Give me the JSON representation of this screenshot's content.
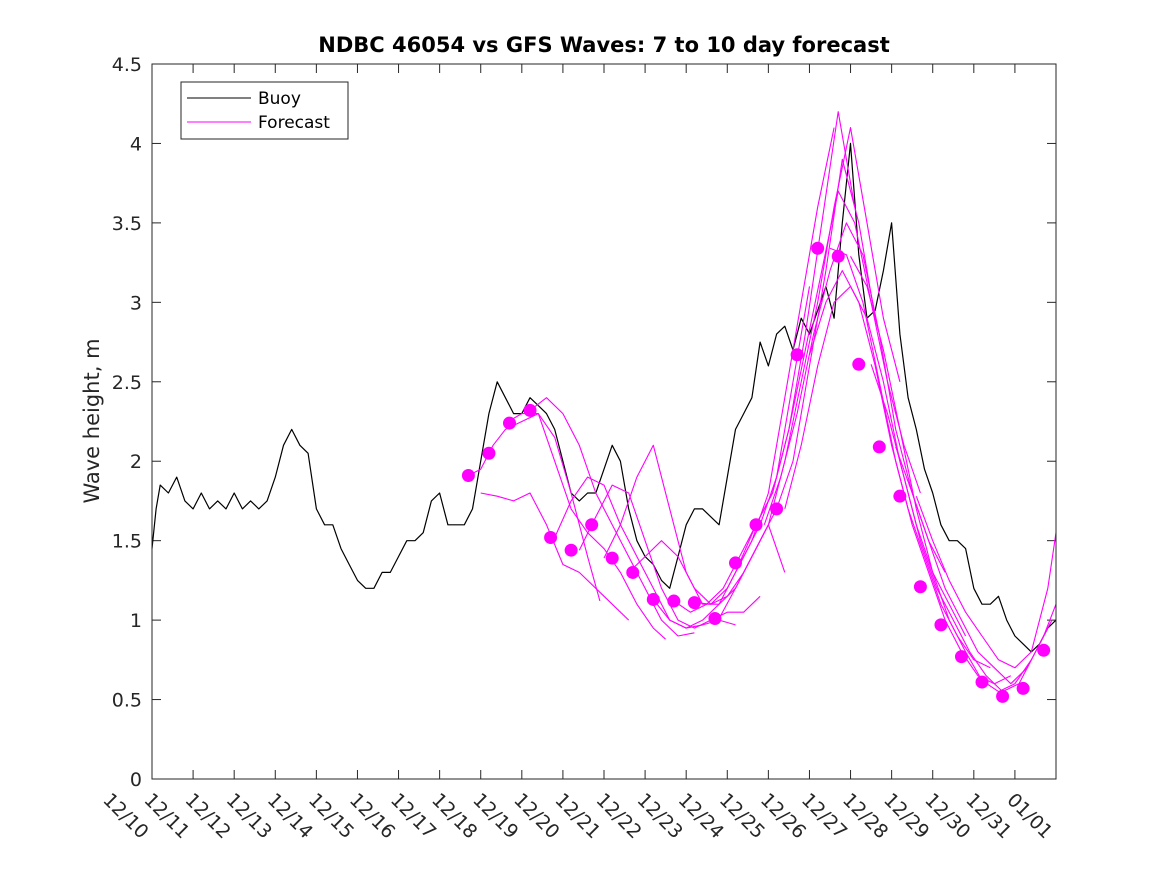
{
  "chart_data": {
    "type": "line",
    "title": "NDBC 46054 vs GFS Waves: 7 to 10 day forecast",
    "xlabel": "",
    "ylabel": "Wave height, m",
    "xlim": [
      0,
      22
    ],
    "ylim": [
      0,
      4.5
    ],
    "yticks": [
      0,
      0.5,
      1,
      1.5,
      2,
      2.5,
      3,
      3.5,
      4,
      4.5
    ],
    "ytick_labels": [
      "0",
      "0.5",
      "1",
      "1.5",
      "2",
      "2.5",
      "3",
      "3.5",
      "4",
      "4.5"
    ],
    "xtick_labels": [
      "12/10",
      "12/11",
      "12/12",
      "12/13",
      "12/14",
      "12/15",
      "12/16",
      "12/17",
      "12/18",
      "12/19",
      "12/20",
      "12/21",
      "12/22",
      "12/23",
      "12/24",
      "12/25",
      "12/26",
      "12/27",
      "12/28",
      "12/29",
      "12/30",
      "12/31",
      "01/01"
    ],
    "legend": {
      "position": "top-left",
      "entries": [
        "Buoy",
        "Forecast"
      ]
    },
    "colors": {
      "buoy": "#000000",
      "forecast": "#ff00ff",
      "axis": "#262626"
    },
    "buoy": {
      "name": "Buoy",
      "x": [
        0,
        0.1,
        0.2,
        0.4,
        0.6,
        0.8,
        1.0,
        1.2,
        1.4,
        1.6,
        1.8,
        2.0,
        2.2,
        2.4,
        2.6,
        2.8,
        3.0,
        3.2,
        3.4,
        3.6,
        3.8,
        4.0,
        4.2,
        4.4,
        4.6,
        4.8,
        5.0,
        5.2,
        5.4,
        5.6,
        5.8,
        6.0,
        6.2,
        6.4,
        6.6,
        6.8,
        7.0,
        7.2,
        7.4,
        7.6,
        7.8,
        8.0,
        8.2,
        8.4,
        8.6,
        8.8,
        9.0,
        9.2,
        9.4,
        9.6,
        9.8,
        10.0,
        10.2,
        10.4,
        10.6,
        10.8,
        11.0,
        11.2,
        11.4,
        11.6,
        11.8,
        12.0,
        12.2,
        12.4,
        12.6,
        12.8,
        13.0,
        13.2,
        13.4,
        13.6,
        13.8,
        14.0,
        14.2,
        14.4,
        14.6,
        14.8,
        15.0,
        15.2,
        15.4,
        15.6,
        15.8,
        16.0,
        16.2,
        16.4,
        16.6,
        16.8,
        17.0,
        17.2,
        17.4,
        17.6,
        17.8,
        18.0,
        18.2,
        18.4,
        18.6,
        18.8,
        19.0,
        19.2,
        19.4,
        19.6,
        19.8,
        20.0,
        20.2,
        20.4,
        20.6,
        20.8,
        21.0,
        21.2,
        21.4,
        21.6,
        21.8,
        22.0
      ],
      "y": [
        1.45,
        1.7,
        1.85,
        1.8,
        1.9,
        1.75,
        1.7,
        1.8,
        1.7,
        1.75,
        1.7,
        1.8,
        1.7,
        1.75,
        1.7,
        1.75,
        1.9,
        2.1,
        2.2,
        2.1,
        2.05,
        1.7,
        1.6,
        1.6,
        1.45,
        1.35,
        1.25,
        1.2,
        1.2,
        1.3,
        1.3,
        1.4,
        1.5,
        1.5,
        1.55,
        1.75,
        1.8,
        1.6,
        1.6,
        1.6,
        1.7,
        2.0,
        2.3,
        2.5,
        2.4,
        2.3,
        2.3,
        2.4,
        2.35,
        2.3,
        2.2,
        2.0,
        1.8,
        1.75,
        1.8,
        1.8,
        1.95,
        2.1,
        2.0,
        1.7,
        1.5,
        1.4,
        1.35,
        1.25,
        1.2,
        1.4,
        1.6,
        1.7,
        1.7,
        1.65,
        1.6,
        1.9,
        2.2,
        2.3,
        2.4,
        2.75,
        2.6,
        2.8,
        2.85,
        2.7,
        2.9,
        2.8,
        2.95,
        3.1,
        2.9,
        3.5,
        4.0,
        3.3,
        2.9,
        2.95,
        3.2,
        3.5,
        2.8,
        2.4,
        2.2,
        1.95,
        1.8,
        1.6,
        1.5,
        1.5,
        1.45,
        1.2,
        1.1,
        1.1,
        1.15,
        1.0,
        0.9,
        0.85,
        0.8,
        0.85,
        0.95,
        1.0
      ]
    },
    "forecast_series": [
      {
        "x": [
          7.7,
          8.0,
          8.3,
          8.6,
          9.0,
          9.4,
          9.8,
          10.2,
          10.6,
          10.9
        ],
        "y": [
          1.91,
          1.95,
          2.1,
          2.2,
          2.25,
          2.3,
          2.15,
          1.8,
          1.4,
          1.12
        ]
      },
      {
        "x": [
          8.0,
          8.4,
          8.8,
          9.2,
          9.6,
          10.0,
          10.4,
          10.8,
          11.2,
          11.6
        ],
        "y": [
          1.8,
          1.78,
          1.75,
          1.8,
          1.6,
          1.35,
          1.3,
          1.2,
          1.1,
          1.0
        ]
      },
      {
        "x": [
          8.6,
          9.0,
          9.4,
          9.8,
          10.2,
          10.6,
          11.0,
          11.4,
          11.8,
          12.2,
          12.5
        ],
        "y": [
          2.24,
          2.3,
          2.3,
          2.0,
          1.7,
          1.55,
          1.45,
          1.3,
          1.1,
          0.95,
          0.88
        ]
      },
      {
        "x": [
          9.2,
          9.6,
          10.0,
          10.4,
          10.8,
          11.2,
          11.6,
          12.0,
          12.4,
          12.8,
          13.2
        ],
        "y": [
          2.32,
          2.4,
          2.3,
          2.1,
          1.8,
          1.6,
          1.4,
          1.2,
          1.0,
          0.9,
          0.92
        ]
      },
      {
        "x": [
          9.8,
          10.2,
          10.6,
          11.0,
          11.4,
          11.8,
          12.2,
          12.6,
          13.0,
          13.4,
          13.8,
          14.2
        ],
        "y": [
          1.52,
          1.75,
          1.9,
          1.85,
          1.6,
          1.4,
          1.2,
          1.0,
          0.95,
          0.97,
          1.0,
          0.97
        ]
      },
      {
        "x": [
          10.4,
          10.8,
          11.2,
          11.6,
          12.0,
          12.4,
          12.8,
          13.2,
          13.6,
          14.0,
          14.4,
          14.8
        ],
        "y": [
          1.44,
          1.65,
          1.85,
          1.8,
          1.5,
          1.2,
          1.0,
          0.95,
          1.0,
          1.05,
          1.05,
          1.15
        ]
      },
      {
        "x": [
          11.0,
          11.4,
          11.8,
          12.2,
          12.6,
          13.0,
          13.4,
          13.8,
          14.2,
          14.6,
          15.0,
          15.4
        ],
        "y": [
          1.39,
          1.6,
          1.9,
          2.1,
          1.7,
          1.3,
          1.1,
          1.1,
          1.2,
          1.4,
          1.6,
          1.3
        ]
      },
      {
        "x": [
          11.6,
          12.0,
          12.4,
          12.8,
          13.2,
          13.6,
          14.0,
          14.4,
          14.8,
          15.2,
          15.6,
          16.0
        ],
        "y": [
          1.3,
          1.4,
          1.5,
          1.4,
          1.2,
          1.1,
          1.2,
          1.4,
          1.6,
          1.9,
          2.5,
          3.1
        ]
      },
      {
        "x": [
          12.2,
          12.6,
          13.0,
          13.4,
          13.8,
          14.2,
          14.6,
          15.0,
          15.4,
          15.8,
          16.2,
          16.6
        ],
        "y": [
          1.13,
          1.0,
          0.95,
          1.0,
          1.1,
          1.3,
          1.5,
          1.8,
          2.4,
          3.0,
          3.6,
          4.1
        ]
      },
      {
        "x": [
          12.7,
          13.1,
          13.5,
          13.9,
          14.3,
          14.7,
          15.1,
          15.5,
          15.9,
          16.3,
          16.7,
          17.1
        ],
        "y": [
          1.12,
          1.05,
          1.1,
          1.2,
          1.4,
          1.6,
          1.8,
          2.2,
          2.8,
          3.5,
          4.2,
          3.6
        ]
      },
      {
        "x": [
          13.2,
          13.6,
          14.0,
          14.4,
          14.8,
          15.2,
          15.6,
          16.0,
          16.4,
          16.8,
          17.2,
          17.6
        ],
        "y": [
          1.11,
          1.1,
          1.15,
          1.3,
          1.5,
          1.7,
          2.0,
          2.6,
          3.2,
          3.9,
          3.5,
          2.9
        ]
      },
      {
        "x": [
          13.8,
          14.2,
          14.6,
          15.0,
          15.4,
          15.8,
          16.2,
          16.6,
          17.0,
          17.4,
          17.8,
          18.2
        ],
        "y": [
          1.01,
          1.2,
          1.4,
          1.6,
          2.0,
          2.5,
          3.0,
          3.6,
          4.1,
          3.5,
          2.9,
          2.5
        ]
      },
      {
        "x": [
          14.3,
          14.7,
          15.1,
          15.5,
          15.9,
          16.3,
          16.7,
          17.1,
          17.5,
          17.9,
          18.3,
          18.7
        ],
        "y": [
          1.36,
          1.6,
          1.8,
          2.2,
          2.7,
          3.2,
          3.7,
          3.5,
          3.0,
          2.5,
          2.1,
          1.8
        ]
      },
      {
        "x": [
          14.9,
          15.3,
          15.7,
          16.1,
          16.5,
          16.9,
          17.3,
          17.7,
          18.1,
          18.5,
          18.9,
          19.3
        ],
        "y": [
          1.6,
          1.9,
          2.3,
          2.8,
          3.2,
          3.5,
          3.3,
          2.8,
          2.2,
          1.8,
          1.5,
          1.3
        ]
      },
      {
        "x": [
          15.4,
          15.8,
          16.2,
          16.6,
          17.0,
          17.4,
          17.8,
          18.2,
          18.6,
          19.0,
          19.4,
          19.8
        ],
        "y": [
          1.7,
          2.1,
          2.6,
          3.0,
          3.1,
          2.9,
          2.5,
          2.0,
          1.6,
          1.3,
          1.1,
          0.9
        ]
      },
      {
        "x": [
          16.0,
          16.4,
          16.8,
          17.2,
          17.6,
          18.0,
          18.4,
          18.8,
          19.2,
          19.6,
          20.0,
          20.4
        ],
        "y": [
          2.67,
          3.0,
          3.2,
          3.0,
          2.6,
          2.1,
          1.7,
          1.4,
          1.1,
          0.9,
          0.75,
          0.7
        ]
      },
      {
        "x": [
          16.5,
          16.9,
          17.3,
          17.7,
          18.1,
          18.5,
          18.9,
          19.3,
          19.7,
          20.1,
          20.5,
          20.9
        ],
        "y": [
          3.34,
          3.3,
          3.0,
          2.5,
          2.0,
          1.6,
          1.3,
          1.0,
          0.8,
          0.65,
          0.6,
          0.65
        ]
      },
      {
        "x": [
          17.0,
          17.4,
          17.8,
          18.2,
          18.6,
          19.0,
          19.4,
          19.8,
          20.2,
          20.6,
          21.0,
          21.4
        ],
        "y": [
          3.29,
          3.1,
          2.7,
          2.2,
          1.7,
          1.3,
          1.0,
          0.8,
          0.62,
          0.55,
          0.6,
          0.75
        ]
      },
      {
        "x": [
          17.5,
          17.9,
          18.3,
          18.7,
          19.1,
          19.5,
          19.9,
          20.3,
          20.7,
          21.1,
          21.5,
          21.9
        ],
        "y": [
          2.61,
          2.3,
          1.9,
          1.5,
          1.2,
          1.0,
          0.8,
          0.65,
          0.55,
          0.6,
          0.8,
          1.0
        ]
      },
      {
        "x": [
          18.1,
          18.5,
          18.9,
          19.3,
          19.7,
          20.1,
          20.5,
          20.9,
          21.3,
          21.7,
          22.0
        ],
        "y": [
          2.09,
          1.8,
          1.5,
          1.2,
          1.0,
          0.8,
          0.7,
          0.6,
          0.7,
          0.9,
          1.1
        ]
      },
      {
        "x": [
          18.6,
          19.0,
          19.4,
          19.8,
          20.2,
          20.6,
          21.0,
          21.4,
          21.8,
          22.0
        ],
        "y": [
          1.78,
          1.5,
          1.25,
          1.05,
          0.9,
          0.75,
          0.7,
          0.8,
          1.2,
          1.55
        ]
      }
    ],
    "forecast_points": {
      "name": "Forecast",
      "x": [
        7.7,
        8.2,
        8.7,
        9.2,
        9.7,
        10.2,
        10.7,
        11.2,
        11.7,
        12.2,
        12.7,
        13.2,
        13.7,
        14.2,
        14.7,
        15.2,
        15.7,
        16.2,
        16.7,
        17.2,
        17.7,
        18.2,
        18.7,
        19.2,
        19.7,
        20.2,
        20.7,
        21.2,
        21.7
      ],
      "y": [
        1.91,
        2.05,
        2.24,
        2.32,
        1.52,
        1.44,
        1.6,
        1.39,
        1.3,
        1.13,
        1.12,
        1.11,
        1.01,
        1.36,
        1.6,
        1.7,
        2.67,
        3.34,
        3.29,
        2.61,
        2.09,
        1.78,
        1.21,
        0.97,
        0.77,
        0.61,
        0.52,
        0.57,
        0.81
      ]
    }
  }
}
